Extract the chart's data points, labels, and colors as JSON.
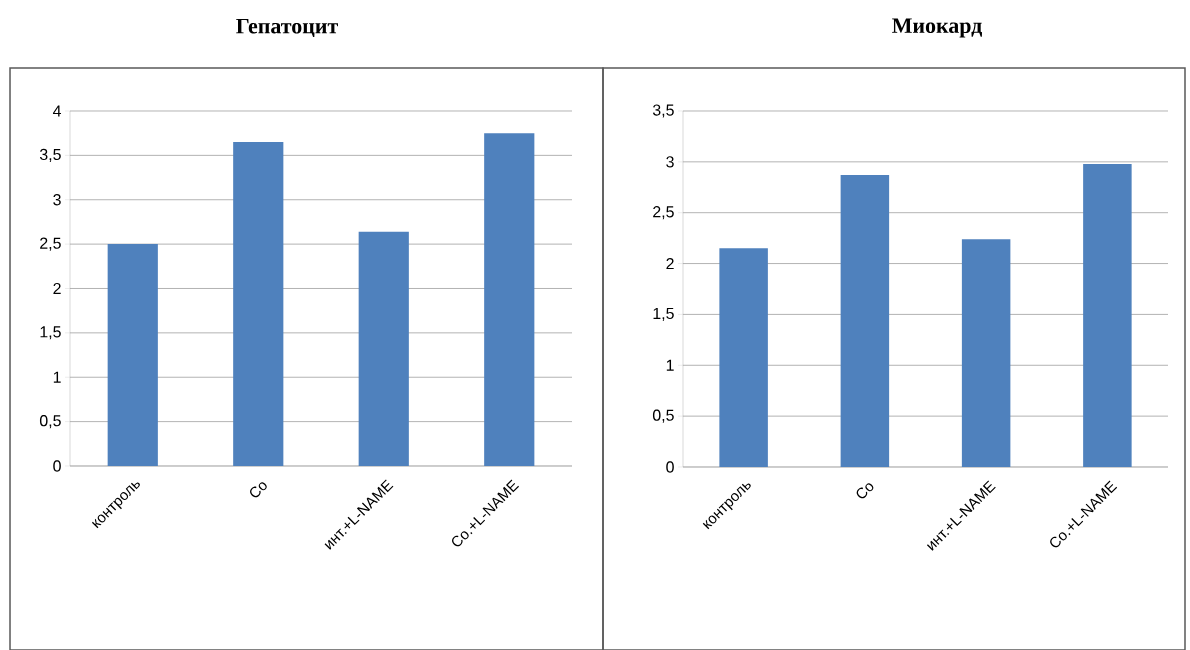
{
  "chart_data": [
    {
      "type": "bar",
      "title": "Гепатоцит",
      "categories": [
        "контроль",
        "Co",
        "инт.+L-NAME",
        "Co.+L-NAME"
      ],
      "values": [
        2.5,
        3.65,
        2.64,
        3.75
      ],
      "color": "#4f81bd",
      "ylim": [
        0,
        4
      ],
      "yticks": [
        0,
        {
          "value": 0.5,
          "label": "0,5"
        },
        1,
        {
          "value": 1.5,
          "label": "1,5"
        },
        2,
        {
          "value": 2.5,
          "label": "2,5"
        },
        3,
        {
          "value": 3.5,
          "label": "3,5"
        },
        4
      ],
      "grid": "y"
    },
    {
      "type": "bar",
      "title": "Миокард",
      "categories": [
        "контроль",
        "Co",
        "инт.+L-NAME",
        "Co.+L-NAME"
      ],
      "values": [
        2.15,
        2.87,
        2.24,
        2.98
      ],
      "color": "#4f81bd",
      "ylim": [
        0,
        3.5
      ],
      "yticks": [
        0,
        {
          "value": 0.5,
          "label": "0,5"
        },
        1,
        {
          "value": 1.5,
          "label": "1,5"
        },
        2,
        {
          "value": 2.5,
          "label": "2,5"
        },
        3,
        {
          "value": 3.5,
          "label": "3,5"
        }
      ],
      "grid": "y"
    }
  ]
}
